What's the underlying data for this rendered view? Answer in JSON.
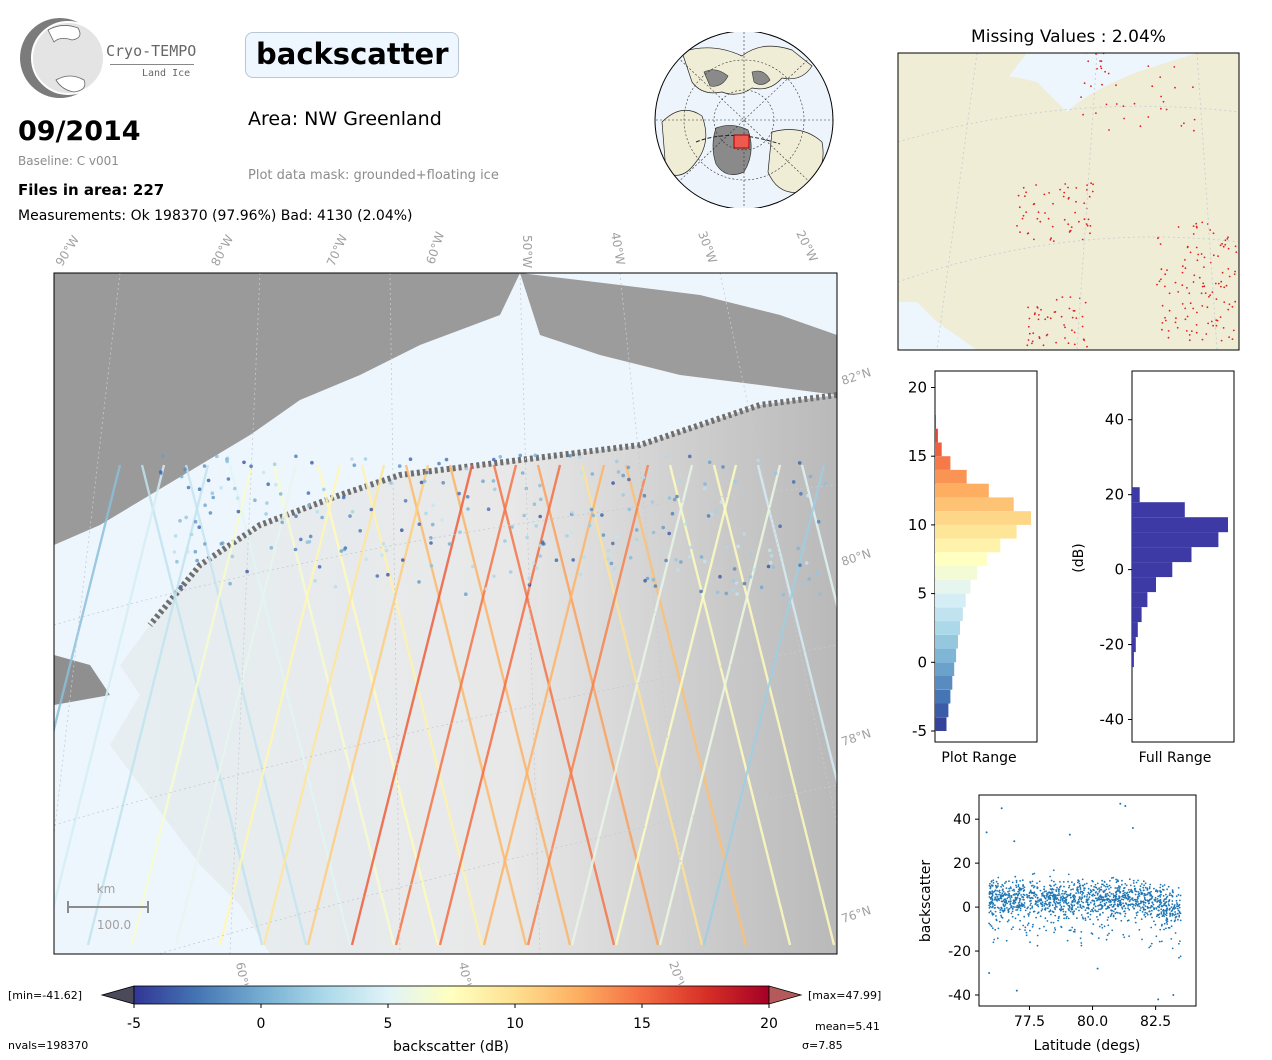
{
  "logo": {
    "name": "Cryo-TEMPO",
    "subtitle": "Land Ice"
  },
  "header": {
    "date": "09/2014",
    "baseline": "Baseline: C v001",
    "files": "Files in area: 227",
    "measurements": "Measurements: Ok 198370 (97.96%) Bad: 4130 (2.04%)",
    "parameter": "backscatter",
    "area": "Area: NW Greenland",
    "mask": "Plot data mask: grounded+floating ice"
  },
  "map": {
    "lon_labels": [
      "90°W",
      "80°W",
      "70°W",
      "60°W",
      "50°W",
      "40°W",
      "30°W",
      "20°W"
    ],
    "lon_labels_bottom": [
      "60°W",
      "40°W",
      "20°W"
    ],
    "lat_labels": [
      "82°N",
      "80°N",
      "78°N",
      "76°N"
    ],
    "scale_unit": "km",
    "scale_value": "100.0"
  },
  "missing": {
    "title": "Missing Values : 2.04%"
  },
  "colorbar": {
    "label": "backscatter (dB)",
    "ticks": [
      "-5",
      "0",
      "5",
      "10",
      "15",
      "20"
    ],
    "min_label": "[min=-41.62]",
    "max_label": "[max=47.99]",
    "nvals": "nvals=198370",
    "mean": "mean=5.41",
    "sigma": "σ=7.85",
    "colors": [
      "#313695",
      "#4575b4",
      "#74add1",
      "#abd9e9",
      "#e0f3f8",
      "#ffffbf",
      "#fee090",
      "#fdae61",
      "#f46d43",
      "#d73027",
      "#a50026"
    ]
  },
  "chart_data": [
    {
      "type": "bar",
      "orientation": "horizontal",
      "xlabel": "Plot Range",
      "ylabel": "",
      "ylim": [
        -5.8,
        21.2
      ],
      "yticks": [
        "-5",
        "0",
        "5",
        "10",
        "15",
        "20"
      ],
      "bins": [
        -5,
        -4,
        -3,
        -2,
        -1,
        0,
        1,
        2,
        3,
        4,
        5,
        6,
        7,
        8,
        9,
        10,
        11,
        12,
        13,
        14,
        15,
        16,
        17
      ],
      "values": [
        0.12,
        0.14,
        0.16,
        0.18,
        0.2,
        0.22,
        0.24,
        0.26,
        0.29,
        0.32,
        0.37,
        0.44,
        0.54,
        0.68,
        0.85,
        1.0,
        0.82,
        0.56,
        0.33,
        0.16,
        0.07,
        0.03,
        0.01
      ]
    },
    {
      "type": "bar",
      "orientation": "horizontal",
      "xlabel": "Full Range",
      "ylabel": "(dB)",
      "ylim": [
        -46,
        53
      ],
      "yticks": [
        "-40",
        "-20",
        "0",
        "20",
        "40"
      ],
      "bin_color": "#3d3aa6",
      "bins": [
        -26,
        -22,
        -18,
        -14,
        -10,
        -6,
        -2,
        2,
        6,
        10,
        14,
        18
      ],
      "values": [
        0.02,
        0.04,
        0.06,
        0.1,
        0.16,
        0.25,
        0.42,
        0.62,
        0.9,
        1.0,
        0.55,
        0.08
      ]
    },
    {
      "type": "scatter",
      "xlabel": "Latitude (degs)",
      "ylabel": "backscatter",
      "xlim": [
        75.5,
        84.1
      ],
      "ylim": [
        -45,
        51
      ],
      "xticks": [
        "77.5",
        "80.0",
        "82.5"
      ],
      "yticks": [
        "-40",
        "-20",
        "0",
        "20",
        "40"
      ],
      "color": "#1f77b4",
      "outliers": [
        [
          75.8,
          34
        ],
        [
          76.4,
          45
        ],
        [
          76.9,
          30
        ],
        [
          79.1,
          33
        ],
        [
          81.1,
          47
        ],
        [
          81.3,
          46
        ],
        [
          81.6,
          36
        ],
        [
          77.0,
          -38
        ],
        [
          82.6,
          -42
        ],
        [
          83.2,
          -40
        ],
        [
          75.9,
          -30
        ],
        [
          80.2,
          -28
        ]
      ]
    }
  ]
}
